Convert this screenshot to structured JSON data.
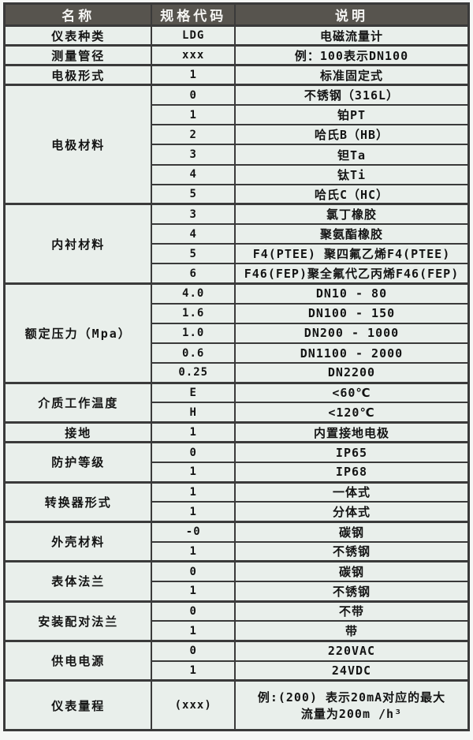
{
  "colors": {
    "page_bg": "#f5f7f5",
    "header_bg": "#57544e",
    "header_text": "#f4f4f2",
    "body_bg": "#e9efeb",
    "body_text": "#141414",
    "border": "#3a3a3a"
  },
  "table": {
    "headers": [
      "名称",
      "规格代码",
      "说明"
    ],
    "groups": [
      {
        "name": "仪表种类",
        "rows": [
          {
            "code": "LDG",
            "desc": "电磁流量计"
          }
        ]
      },
      {
        "name": "测量管径",
        "rows": [
          {
            "code": "xxx",
            "desc": "例：100表示DN100"
          }
        ]
      },
      {
        "name": "电极形式",
        "rows": [
          {
            "code": "1",
            "desc": "标准固定式"
          }
        ]
      },
      {
        "name": "电极材料",
        "rows": [
          {
            "code": "0",
            "desc": "不锈钢（316L）"
          },
          {
            "code": "1",
            "desc": "铂PT"
          },
          {
            "code": "2",
            "desc": "哈氏B（HB）"
          },
          {
            "code": "3",
            "desc": "钽Ta"
          },
          {
            "code": "4",
            "desc": "钛Ti"
          },
          {
            "code": "5",
            "desc": "哈氏C（HC）"
          }
        ]
      },
      {
        "name": "内衬材料",
        "rows": [
          {
            "code": "3",
            "desc": "氯丁橡胶"
          },
          {
            "code": "4",
            "desc": "聚氨酯橡胶"
          },
          {
            "code": "5",
            "desc": "F4(PTEE) 聚四氟乙烯F4(PTEE)"
          },
          {
            "code": "6",
            "desc": "F46(FEP)聚全氟代乙丙烯F46(FEP)"
          }
        ]
      },
      {
        "name": "额定压力（Mpa）",
        "rows": [
          {
            "code": "4.0",
            "desc": "DN10 - 80"
          },
          {
            "code": "1.6",
            "desc": "DN100 - 150"
          },
          {
            "code": "1.0",
            "desc": "DN200 - 1000"
          },
          {
            "code": "0.6",
            "desc": "DN1100 - 2000"
          },
          {
            "code": "0.25",
            "desc": "DN2200"
          }
        ]
      },
      {
        "name": "介质工作温度",
        "rows": [
          {
            "code": "E",
            "desc": "<60℃"
          },
          {
            "code": "H",
            "desc": "<120℃"
          }
        ]
      },
      {
        "name": "接地",
        "rows": [
          {
            "code": "1",
            "desc": "内置接地电极"
          }
        ]
      },
      {
        "name": "防护等级",
        "rows": [
          {
            "code": "0",
            "desc": "IP65"
          },
          {
            "code": "1",
            "desc": "IP68"
          }
        ]
      },
      {
        "name": "转换器形式",
        "rows": [
          {
            "code": "1",
            "desc": "一体式"
          },
          {
            "code": "1",
            "desc": "分体式"
          }
        ]
      },
      {
        "name": "外壳材料",
        "rows": [
          {
            "code": "-0",
            "desc": "碳钢"
          },
          {
            "code": "1",
            "desc": "不锈钢"
          }
        ]
      },
      {
        "name": "表体法兰",
        "rows": [
          {
            "code": "0",
            "desc": "碳钢"
          },
          {
            "code": "1",
            "desc": "不锈钢"
          }
        ]
      },
      {
        "name": "安装配对法兰",
        "rows": [
          {
            "code": "0",
            "desc": "不带"
          },
          {
            "code": "1",
            "desc": "带"
          }
        ]
      },
      {
        "name": "供电电源",
        "rows": [
          {
            "code": "0",
            "desc": "220VAC"
          },
          {
            "code": "1",
            "desc": "24VDC"
          }
        ]
      },
      {
        "name": "仪表量程",
        "rows": [
          {
            "code": "(xxx)",
            "desc": "例:(200) 表示20mA对应的最大\n流量为200m /h³"
          }
        ]
      }
    ]
  }
}
